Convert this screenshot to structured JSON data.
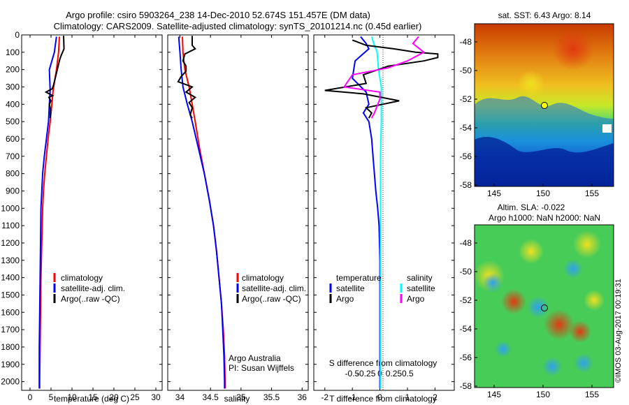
{
  "header": {
    "line1": "Argo profile: csiro 5903264_238 14-Dec-2010 52.674S 151.457E (DM data)",
    "line2": "Climatology: CARS2009. Satellite-adjusted climatology: synTS_20101214.nc (0.45d earlier)"
  },
  "colors": {
    "climatology": "#ff0000",
    "satellite": "#0000ff",
    "argo": "#000000",
    "argo_sal": "#ff00ff",
    "sat_sal": "#00ffff"
  },
  "chart_data": [
    {
      "type": "line",
      "xlabel": "temperature (deg C)",
      "ylim": [
        2050,
        0
      ],
      "yticks": [
        0,
        100,
        200,
        300,
        400,
        500,
        600,
        700,
        800,
        900,
        1000,
        1100,
        1200,
        1300,
        1400,
        1500,
        1600,
        1700,
        1800,
        1900,
        2000
      ],
      "xlim": [
        -2,
        31.5
      ],
      "xticks": [
        0,
        5,
        10,
        15,
        20,
        25,
        30
      ],
      "legend": [
        "climatology",
        "satellite-adj. clim.",
        "Argo(..raw -QC)"
      ],
      "series": [
        {
          "name": "climatology",
          "color": "#ff0000",
          "points": [
            [
              7.0,
              10
            ],
            [
              6.8,
              100
            ],
            [
              6.3,
              200
            ],
            [
              5.5,
              320
            ],
            [
              5.2,
              400
            ],
            [
              4.8,
              500
            ],
            [
              4.3,
              600
            ],
            [
              3.9,
              700
            ],
            [
              3.5,
              800
            ],
            [
              3.2,
              900
            ],
            [
              3.0,
              1000
            ],
            [
              2.8,
              1200
            ],
            [
              2.6,
              1400
            ],
            [
              2.5,
              1600
            ],
            [
              2.4,
              1800
            ],
            [
              2.3,
              2000
            ],
            [
              2.3,
              2040
            ]
          ]
        },
        {
          "name": "satellite-adj. clim.",
          "color": "#0000ff",
          "points": [
            [
              6.3,
              10
            ],
            [
              5.8,
              100
            ],
            [
              4.6,
              200
            ],
            [
              4.8,
              320
            ],
            [
              4.6,
              400
            ],
            [
              4.4,
              500
            ],
            [
              3.9,
              600
            ],
            [
              3.4,
              700
            ],
            [
              3.0,
              800
            ],
            [
              2.8,
              900
            ],
            [
              2.6,
              1000
            ],
            [
              2.5,
              1200
            ],
            [
              2.4,
              1400
            ],
            [
              2.3,
              1600
            ],
            [
              2.2,
              1800
            ],
            [
              2.2,
              2000
            ],
            [
              2.2,
              2040
            ]
          ]
        },
        {
          "name": "Argo(..raw -QC)",
          "color": "#000000",
          "points": [
            [
              8.0,
              5
            ],
            [
              8.1,
              80
            ],
            [
              7.4,
              120
            ],
            [
              7.1,
              140
            ],
            [
              6.3,
              220
            ],
            [
              5.6,
              290
            ],
            [
              5.3,
              310
            ],
            [
              3.8,
              330
            ],
            [
              5.4,
              350
            ],
            [
              4.5,
              360
            ],
            [
              5.0,
              380
            ],
            [
              4.6,
              400
            ],
            [
              4.9,
              430
            ],
            [
              4.8,
              480
            ]
          ]
        }
      ]
    },
    {
      "type": "line",
      "xlabel": "salinity",
      "ylim": [
        2050,
        0
      ],
      "xlim": [
        33.8,
        36.1
      ],
      "xticks": [
        34,
        34.5,
        35,
        35.5,
        36
      ],
      "legend": [
        "climatology",
        "satellite-adj. clim.",
        "Argo(..raw -QC)"
      ],
      "annotations": [
        "Argo Australia",
        "PI: Susan Wijffels"
      ],
      "series": [
        {
          "name": "climatology",
          "color": "#ff0000",
          "points": [
            [
              34.04,
              10
            ],
            [
              34.05,
              100
            ],
            [
              34.08,
              200
            ],
            [
              34.15,
              300
            ],
            [
              34.2,
              400
            ],
            [
              34.25,
              500
            ],
            [
              34.32,
              650
            ],
            [
              34.4,
              800
            ],
            [
              34.48,
              950
            ],
            [
              34.55,
              1100
            ],
            [
              34.6,
              1250
            ],
            [
              34.64,
              1400
            ],
            [
              34.68,
              1550
            ],
            [
              34.71,
              1700
            ],
            [
              34.73,
              1850
            ],
            [
              34.74,
              2000
            ],
            [
              34.74,
              2040
            ]
          ]
        },
        {
          "name": "satellite-adj. clim.",
          "color": "#0000ff",
          "points": [
            [
              33.98,
              10
            ],
            [
              34.0,
              100
            ],
            [
              34.02,
              200
            ],
            [
              34.05,
              300
            ],
            [
              34.12,
              400
            ],
            [
              34.2,
              500
            ],
            [
              34.3,
              650
            ],
            [
              34.4,
              800
            ],
            [
              34.48,
              950
            ],
            [
              34.55,
              1100
            ],
            [
              34.6,
              1250
            ],
            [
              34.64,
              1400
            ],
            [
              34.68,
              1550
            ],
            [
              34.7,
              1700
            ],
            [
              34.72,
              1850
            ],
            [
              34.73,
              2000
            ],
            [
              34.73,
              2040
            ]
          ]
        },
        {
          "name": "Argo(..raw -QC)",
          "color": "#000000",
          "points": [
            [
              34.2,
              5
            ],
            [
              34.2,
              60
            ],
            [
              34.25,
              80
            ],
            [
              34.08,
              110
            ],
            [
              34.05,
              150
            ],
            [
              34.1,
              180
            ],
            [
              34.1,
              210
            ],
            [
              34.02,
              240
            ],
            [
              33.97,
              270
            ],
            [
              34.2,
              300
            ],
            [
              34.1,
              330
            ],
            [
              34.25,
              360
            ],
            [
              34.15,
              390
            ],
            [
              34.2,
              420
            ],
            [
              34.17,
              460
            ],
            [
              34.2,
              480
            ]
          ]
        }
      ]
    },
    {
      "type": "line",
      "xlabel": "T difference from climatology",
      "xlabel_top": "S difference from climatology",
      "ylim": [
        2050,
        0
      ],
      "xlim": [
        -2.4,
        2.7
      ],
      "xticks": [
        -2,
        -1,
        0,
        1,
        2
      ],
      "xticks_top": [
        "-0.5",
        "-0.25",
        "0",
        "0.25",
        "0.5"
      ],
      "legend_left_title": "temperature",
      "legend_right_title": "salinity",
      "legend_left": [
        "satellite",
        "Argo"
      ],
      "legend_right": [
        "satellite",
        "Argo"
      ],
      "series": [
        {
          "name": "temperature satellite",
          "color": "#0000ff",
          "points": [
            [
              -0.7,
              10
            ],
            [
              -0.5,
              50
            ],
            [
              -0.4,
              80
            ],
            [
              -0.9,
              150
            ],
            [
              -1.0,
              250
            ],
            [
              -0.5,
              330
            ],
            [
              -0.4,
              400
            ],
            [
              -0.6,
              450
            ],
            [
              -0.4,
              500
            ],
            [
              -0.3,
              600
            ],
            [
              -0.25,
              700
            ],
            [
              -0.2,
              800
            ],
            [
              -0.15,
              900
            ],
            [
              -0.08,
              1000
            ],
            [
              -0.03,
              1100
            ],
            [
              0.0,
              1300
            ],
            [
              0.0,
              2000
            ],
            [
              0.0,
              2040
            ]
          ]
        },
        {
          "name": "salinity satellite",
          "color": "#00ffff",
          "points": [
            [
              -0.3,
              10
            ],
            [
              -0.2,
              60
            ],
            [
              -0.1,
              100
            ],
            [
              -0.05,
              200
            ],
            [
              0.05,
              300
            ],
            [
              0.05,
              500
            ],
            [
              0.02,
              700
            ],
            [
              0.02,
              1000
            ],
            [
              0.02,
              1400
            ],
            [
              0.02,
              2040
            ]
          ]
        },
        {
          "name": "temperature Argo",
          "color": "#000000",
          "points": [
            [
              -1.0,
              30
            ],
            [
              -0.5,
              60
            ],
            [
              0.5,
              80
            ],
            [
              1.3,
              100
            ],
            [
              2.1,
              110
            ],
            [
              2.1,
              130
            ],
            [
              1.6,
              150
            ],
            [
              0.3,
              180
            ],
            [
              -0.6,
              230
            ],
            [
              -0.5,
              280
            ],
            [
              -2.0,
              320
            ],
            [
              -0.6,
              340
            ],
            [
              0.7,
              380
            ],
            [
              -0.5,
              420
            ],
            [
              -0.3,
              450
            ],
            [
              -0.4,
              480
            ]
          ]
        },
        {
          "name": "salinity Argo",
          "color": "#ff00ff",
          "points": [
            [
              1.4,
              10
            ],
            [
              1.2,
              50
            ],
            [
              1.6,
              100
            ],
            [
              1.0,
              150
            ],
            [
              0.3,
              190
            ],
            [
              -1.0,
              230
            ],
            [
              -1.3,
              300
            ],
            [
              0.0,
              330
            ],
            [
              0.0,
              370
            ],
            [
              -0.2,
              450
            ],
            [
              -0.3,
              480
            ]
          ]
        }
      ]
    }
  ],
  "maps": {
    "top": {
      "title": "sat. SST: 6.43 Argo: 8.14",
      "yticks": [
        "-48",
        "-50",
        "-52",
        "-54",
        "-56",
        "-58"
      ],
      "xticks": [
        "145",
        "150",
        "155"
      ]
    },
    "bottom": {
      "title1": "Altim. SLA: -0.022",
      "title2": "Argo h1000: NaN h2000: NaN",
      "yticks": [
        "-48",
        "-50",
        "-52",
        "-54",
        "-56",
        "-58"
      ],
      "xticks": [
        "145",
        "150",
        "155"
      ]
    }
  },
  "credit": "©IMOS 03-Aug-2017 00:19:31"
}
